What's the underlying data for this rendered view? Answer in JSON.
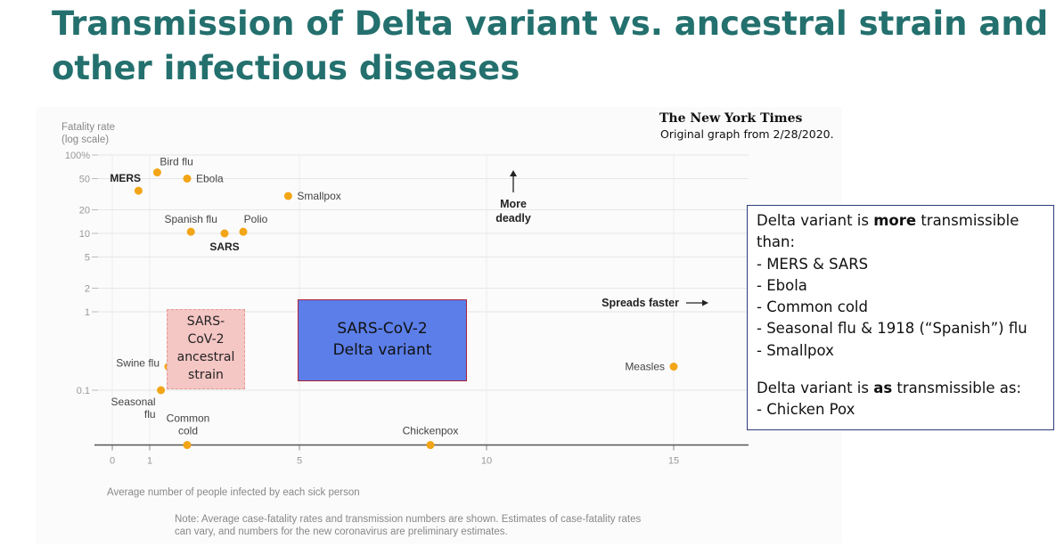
{
  "slide": {
    "title": "Transmission of Delta variant vs. ancestral strain and other infectious diseases"
  },
  "source": {
    "logo_text": "The New York Times",
    "note": "Original graph from 2/28/2020."
  },
  "chart_data": {
    "type": "scatter",
    "ylabel": "Fatality rate\n(log scale)",
    "xlabel": "Average number of people infected by each sick person",
    "x_ticks": [
      "0",
      "1",
      "5",
      "10",
      "15"
    ],
    "y_ticks": [
      "100%",
      "50",
      "20",
      "10",
      "5",
      "2",
      "1",
      "0.1"
    ],
    "xlim": [
      -0.5,
      17
    ],
    "ylim": [
      0.02,
      100
    ],
    "y_scale": "log",
    "grid": true,
    "point_color": "#f2a516",
    "points": [
      {
        "label": "MERS",
        "x": 0.7,
        "y": 35,
        "bold": true
      },
      {
        "label": "Bird flu",
        "x": 1.2,
        "y": 60,
        "bold": false
      },
      {
        "label": "Ebola",
        "x": 2.0,
        "y": 50,
        "bold": false
      },
      {
        "label": "Smallpox",
        "x": 4.7,
        "y": 30,
        "bold": false
      },
      {
        "label": "Spanish flu",
        "x": 2.1,
        "y": 10.5,
        "bold": false
      },
      {
        "label": "SARS",
        "x": 3.0,
        "y": 10,
        "bold": true
      },
      {
        "label": "Polio",
        "x": 3.5,
        "y": 10.5,
        "bold": false
      },
      {
        "label": "Swine flu",
        "x": 1.5,
        "y": 0.2,
        "bold": false
      },
      {
        "label": "Seasonal\nflu",
        "x": 1.3,
        "y": 0.1,
        "bold": false
      },
      {
        "label": "Common\ncold",
        "x": 2.0,
        "y": 0.02,
        "bold": false
      },
      {
        "label": "Chickenpox",
        "x": 8.5,
        "y": 0.02,
        "bold": false
      },
      {
        "label": "Measles",
        "x": 15,
        "y": 0.2,
        "bold": false
      }
    ],
    "annotations": {
      "more_deadly": "More\ndeadly",
      "spreads_faster": "Spreads faster"
    },
    "footnote": "Note: Average case-fatality rates and transmission numbers are shown. Estimates of case-fatality rates\ncan vary, and numbers for the new coronavirus are preliminary estimates."
  },
  "overlays": {
    "ancestral_box": "SARS-\nCoV-2\nancestral\nstrain",
    "delta_box": "SARS-CoV-2\nDelta variant"
  },
  "textbox": {
    "intro_pre": "Delta variant is ",
    "intro_bold": "more",
    "intro_post": " transmissible than:",
    "items": [
      "-  MERS & SARS",
      "-  Ebola",
      "-  Common cold",
      "-  Seasonal flu & 1918 (“Spanish”) flu",
      "-  Smallpox"
    ],
    "second_pre": "Delta variant is ",
    "second_bold": "as",
    "second_post": " transmissible as:",
    "second_item": "- Chicken Pox"
  }
}
